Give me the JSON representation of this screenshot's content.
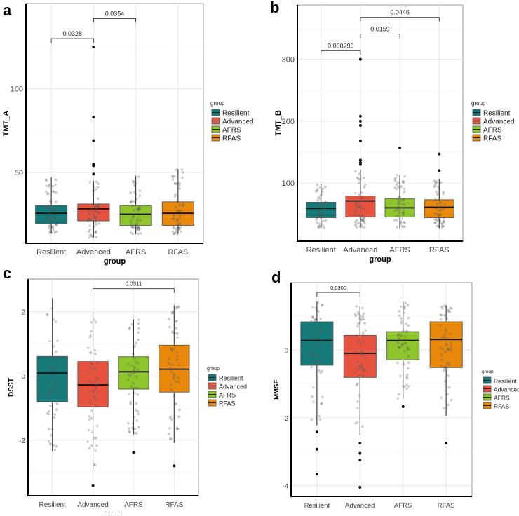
{
  "colors": {
    "Resilient": "#157a78",
    "Advanced": "#e8533f",
    "AFRS": "#8dc52a",
    "RFAS": "#e8890c"
  },
  "chart_data": [
    {
      "panel": "a",
      "type": "box",
      "ylabel": "TMT_A",
      "xlabel": "group",
      "categories": [
        "Resilient",
        "Advanced",
        "AFRS",
        "RFAS"
      ],
      "ylim": [
        7.6,
        151
      ],
      "yticks": [
        50,
        100
      ],
      "minor_yticks": [
        25,
        75,
        125
      ],
      "legend": {
        "title": "group",
        "entries": [
          "Resilient",
          "Advanced",
          "AFRS",
          "RFAS"
        ],
        "placement": "right"
      },
      "series": [
        {
          "name": "Resilient",
          "q1": 19.3,
          "median": 25.6,
          "q3": 30.2,
          "whisker_low": 13.4,
          "whisker_high": 47,
          "outliers": []
        },
        {
          "name": "Advanced",
          "q1": 21,
          "median": 28.2,
          "q3": 31.1,
          "whisker_low": 11,
          "whisker_high": 45,
          "outliers": [
            125,
            83,
            69,
            55,
            54,
            49
          ]
        },
        {
          "name": "AFRS",
          "q1": 18.2,
          "median": 25,
          "q3": 30.2,
          "whisker_low": 13,
          "whisker_high": 48,
          "outliers": []
        },
        {
          "name": "RFAS",
          "q1": 18.2,
          "median": 25.6,
          "q3": 32.4,
          "whisker_low": 13,
          "whisker_high": 52,
          "outliers": []
        }
      ],
      "comparisons": [
        {
          "from": "Resilient",
          "to": "Advanced",
          "y": 130,
          "label": "0.0328"
        },
        {
          "from": "Advanced",
          "to": "AFRS",
          "y": 142,
          "label": "0.0354"
        }
      ]
    },
    {
      "panel": "b",
      "type": "box",
      "ylabel": "TMT_B",
      "xlabel": "group",
      "categories": [
        "Resilient",
        "Advanced",
        "AFRS",
        "RFAS"
      ],
      "ylim": [
        6,
        388
      ],
      "yticks": [
        100,
        200,
        300
      ],
      "minor_yticks": [
        50,
        150,
        250,
        350
      ],
      "legend": {
        "title": "group",
        "entries": [
          "Resilient",
          "Advanced",
          "AFRS",
          "RFAS"
        ],
        "placement": "right"
      },
      "series": [
        {
          "name": "Resilient",
          "q1": 44,
          "median": 59,
          "q3": 69,
          "whisker_low": 27,
          "whisker_high": 98,
          "outliers": []
        },
        {
          "name": "Advanced",
          "q1": 45,
          "median": 71,
          "q3": 79,
          "whisker_low": 28,
          "whisker_high": 122,
          "outliers": [
            300,
            208,
            200,
            193,
            168,
            137,
            133,
            130
          ]
        },
        {
          "name": "AFRS",
          "q1": 45,
          "median": 60,
          "q3": 75,
          "whisker_low": 27,
          "whisker_high": 113,
          "outliers": [
            157
          ]
        },
        {
          "name": "RFAS",
          "q1": 44,
          "median": 61,
          "q3": 73,
          "whisker_low": 27,
          "whisker_high": 106,
          "outliers": [
            147,
            120
          ]
        }
      ],
      "comparisons": [
        {
          "from": "Resilient",
          "to": "Advanced",
          "y": 314,
          "label": "0.000299"
        },
        {
          "from": "Advanced",
          "to": "AFRS",
          "y": 341,
          "label": "0.0159"
        },
        {
          "from": "Advanced",
          "to": "RFAS",
          "y": 368,
          "label": "0.0446"
        }
      ]
    },
    {
      "panel": "c",
      "type": "box",
      "ylabel": "DSST",
      "xlabel": "group",
      "categories": [
        "Resilient",
        "Advanced",
        "AFRS",
        "RFAS"
      ],
      "ylim": [
        -3.73,
        3.02
      ],
      "yticks": [
        -2,
        0,
        2
      ],
      "minor_yticks": [
        -3,
        -1,
        1,
        3
      ],
      "legend": {
        "title": "group",
        "entries": [
          "Resilient",
          "Advanced",
          "AFRS",
          "RFAS"
        ],
        "placement": "right"
      },
      "series": [
        {
          "name": "Resilient",
          "q1": -0.81,
          "median": 0.09,
          "q3": 0.61,
          "whisker_low": -2.34,
          "whisker_high": 2.42,
          "outliers": []
        },
        {
          "name": "Advanced",
          "q1": -0.96,
          "median": -0.28,
          "q3": 0.45,
          "whisker_low": -2.9,
          "whisker_high": 2.0,
          "outliers": [
            -3.42
          ]
        },
        {
          "name": "AFRS",
          "q1": -0.41,
          "median": 0.13,
          "q3": 0.6,
          "whisker_low": -1.82,
          "whisker_high": 1.77,
          "outliers": [
            -2.38
          ]
        },
        {
          "name": "RFAS",
          "q1": -0.5,
          "median": 0.21,
          "q3": 0.96,
          "whisker_low": -2.08,
          "whisker_high": 2.2,
          "outliers": [
            -2.8
          ]
        }
      ],
      "comparisons": [
        {
          "from": "Advanced",
          "to": "RFAS",
          "y": 2.72,
          "label": "0.0311"
        }
      ]
    },
    {
      "panel": "d",
      "type": "box",
      "ylabel": "MMSE",
      "xlabel": "group",
      "categories": [
        "Resilient",
        "Advanced",
        "AFRS",
        "RFAS"
      ],
      "ylim": [
        -4.32,
        1.99
      ],
      "yticks": [
        -4,
        -2,
        0
      ],
      "minor_yticks": [
        -3,
        -1,
        1
      ],
      "legend": {
        "title": "group",
        "entries": [
          "Resilient",
          "Advanced",
          "AFRS",
          "RFAS"
        ],
        "placement": "right"
      },
      "series": [
        {
          "name": "Resilient",
          "q1": -0.45,
          "median": 0.28,
          "q3": 0.83,
          "whisker_low": -2.22,
          "whisker_high": 1.43,
          "outliers": [
            -2.42,
            -2.93,
            -3.66
          ]
        },
        {
          "name": "Advanced",
          "q1": -0.81,
          "median": -0.1,
          "q3": 0.43,
          "whisker_low": -2.5,
          "whisker_high": 1.3,
          "outliers": [
            -2.75,
            -3.05,
            -3.25,
            -4.05
          ]
        },
        {
          "name": "AFRS",
          "q1": -0.29,
          "median": 0.28,
          "q3": 0.54,
          "whisker_low": -1.43,
          "whisker_high": 1.43,
          "outliers": [
            -1.67
          ]
        },
        {
          "name": "RFAS",
          "q1": -0.52,
          "median": 0.31,
          "q3": 0.83,
          "whisker_low": -1.94,
          "whisker_high": 1.32,
          "outliers": [
            -2.75
          ]
        }
      ],
      "comparisons": [
        {
          "from": "Resilient",
          "to": "Advanced",
          "y": 1.7,
          "label": "0.0300"
        }
      ]
    }
  ]
}
